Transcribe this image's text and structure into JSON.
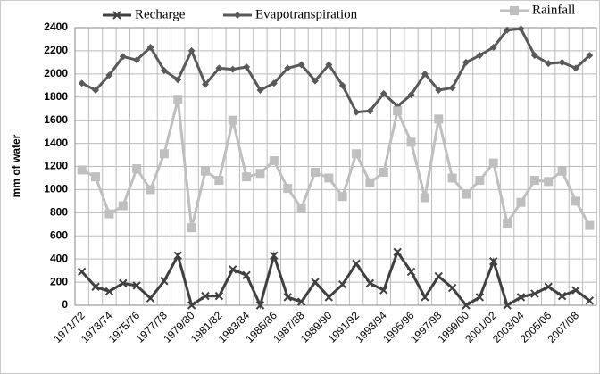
{
  "chart_data": {
    "type": "line",
    "ylabel": "mm of water",
    "categories": [
      "1971/72",
      null,
      "1973/74",
      null,
      "1975/76",
      null,
      "1977/78",
      null,
      "1979/80",
      null,
      "1981/82",
      null,
      "1983/84",
      null,
      "1985/86",
      null,
      "1987/88",
      null,
      "1989/90",
      null,
      "1991/92",
      null,
      "1993/94",
      null,
      "1995/96",
      null,
      "1997/98",
      null,
      "1999/00",
      null,
      "2001/02",
      null,
      "2003/04",
      null,
      "2005/06",
      null,
      "2007/08",
      null
    ],
    "series": [
      {
        "name": "Recharge",
        "color": "#404040",
        "marker": "x",
        "values": [
          290,
          160,
          120,
          190,
          170,
          60,
          210,
          430,
          0,
          80,
          80,
          310,
          260,
          0,
          430,
          70,
          30,
          200,
          70,
          180,
          360,
          190,
          130,
          460,
          290,
          70,
          250,
          150,
          0,
          70,
          380,
          0,
          70,
          100,
          160,
          80,
          130,
          40
        ]
      },
      {
        "name": "Evapotranspiration",
        "color": "#595959",
        "marker": "diamond",
        "values": [
          1920,
          1860,
          1990,
          2150,
          2120,
          2230,
          2030,
          1950,
          2200,
          1910,
          2050,
          2040,
          2060,
          1860,
          1920,
          2050,
          2080,
          1940,
          2080,
          1900,
          1670,
          1680,
          1830,
          1720,
          1820,
          2000,
          1860,
          1880,
          2100,
          2160,
          2230,
          2380,
          2390,
          2160,
          2090,
          2100,
          2050,
          2160
        ]
      },
      {
        "name": "Rainfall",
        "color": "#bfbfbf",
        "marker": "square",
        "values": [
          1170,
          1110,
          790,
          860,
          1180,
          1000,
          1310,
          1780,
          670,
          1160,
          1080,
          1600,
          1110,
          1140,
          1250,
          1010,
          840,
          1150,
          1100,
          940,
          1310,
          1060,
          1150,
          1680,
          1410,
          930,
          1610,
          1100,
          960,
          1080,
          1230,
          710,
          890,
          1080,
          1070,
          1160,
          900,
          690
        ]
      }
    ],
    "ylim": [
      0,
      2400
    ],
    "yticks": [
      0,
      200,
      400,
      600,
      800,
      1000,
      1200,
      1400,
      1600,
      1800,
      2000,
      2200,
      2400
    ],
    "grid": true
  }
}
